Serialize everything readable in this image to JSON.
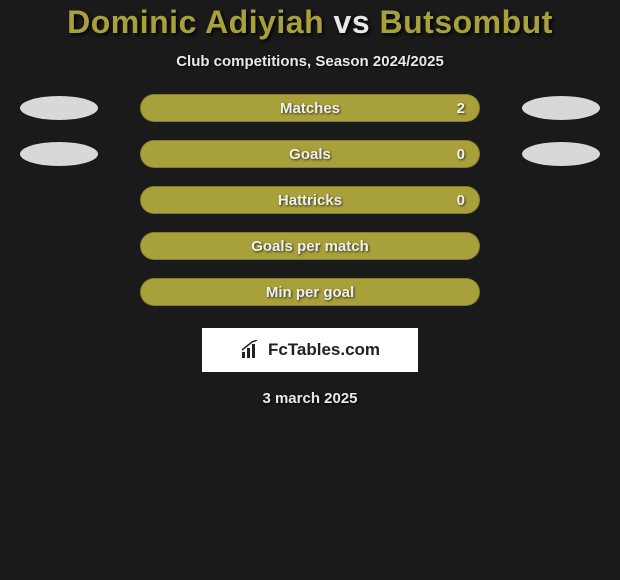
{
  "title": {
    "player1": "Dominic Adiyiah",
    "vs": "vs",
    "player2": "Butsombut",
    "player1_color": "#a8a03a",
    "vs_color": "#e8e8e8",
    "player2_color": "#a8a03a"
  },
  "subtitle": "Club competitions, Season 2024/2025",
  "rows": [
    {
      "label": "Matches",
      "value_right": "2",
      "bar_color": "#a8a03a",
      "left_ellipse_color": "#d8d8d8",
      "right_ellipse_color": "#d8d8d8",
      "show_left_ellipse": true,
      "show_right_ellipse": true,
      "show_value_right": true
    },
    {
      "label": "Goals",
      "value_right": "0",
      "bar_color": "#a8a03a",
      "left_ellipse_color": "#d8d8d8",
      "right_ellipse_color": "#d8d8d8",
      "show_left_ellipse": true,
      "show_right_ellipse": true,
      "show_value_right": true
    },
    {
      "label": "Hattricks",
      "value_right": "0",
      "bar_color": "#a8a03a",
      "left_ellipse_color": "",
      "right_ellipse_color": "",
      "show_left_ellipse": false,
      "show_right_ellipse": false,
      "show_value_right": true
    },
    {
      "label": "Goals per match",
      "value_right": "",
      "bar_color": "#a8a03a",
      "left_ellipse_color": "",
      "right_ellipse_color": "",
      "show_left_ellipse": false,
      "show_right_ellipse": false,
      "show_value_right": false
    },
    {
      "label": "Min per goal",
      "value_right": "",
      "bar_color": "#a8a03a",
      "left_ellipse_color": "",
      "right_ellipse_color": "",
      "show_left_ellipse": false,
      "show_right_ellipse": false,
      "show_value_right": false
    }
  ],
  "logo": {
    "text": "FcTables.com",
    "box_bg": "#ffffff",
    "text_color": "#222222"
  },
  "date": "3 march 2025",
  "background_color": "#1a1a1a"
}
